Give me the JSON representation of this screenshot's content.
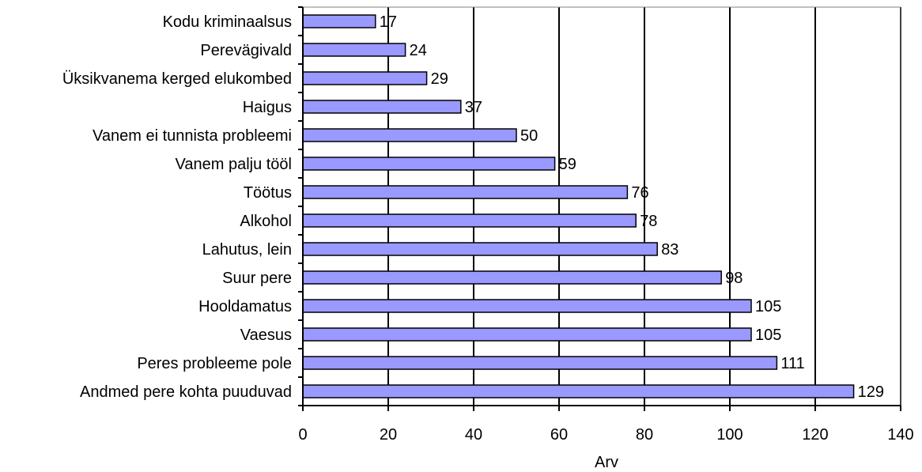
{
  "chart_data": {
    "type": "bar",
    "orientation": "horizontal",
    "categories": [
      "Kodu kriminaalsus",
      "Perevägivald",
      "Üksikvanema kerged elukombed",
      "Haigus",
      "Vanem ei tunnista probleemi",
      "Vanem palju tööl",
      "Töötus",
      "Alkohol ",
      "Lahutus, lein",
      "Suur pere",
      "Hooldamatus",
      "Vaesus",
      "Peres probleeme pole ",
      "Andmed pere kohta puuduvad"
    ],
    "values": [
      17,
      24,
      29,
      37,
      50,
      59,
      76,
      78,
      83,
      98,
      105,
      105,
      111,
      129
    ],
    "xlabel": "Arv",
    "ylabel": "",
    "xlim": [
      0,
      140
    ],
    "xticks": [
      0,
      20,
      40,
      60,
      80,
      100,
      120,
      140
    ],
    "gridlines": "vertical",
    "legend": "none",
    "data_labels": true
  },
  "colors": {
    "bar_fill": "#9999ff",
    "bar_stroke": "#000000",
    "grid": "#000000",
    "axis": "#000000",
    "text": "#000000"
  }
}
